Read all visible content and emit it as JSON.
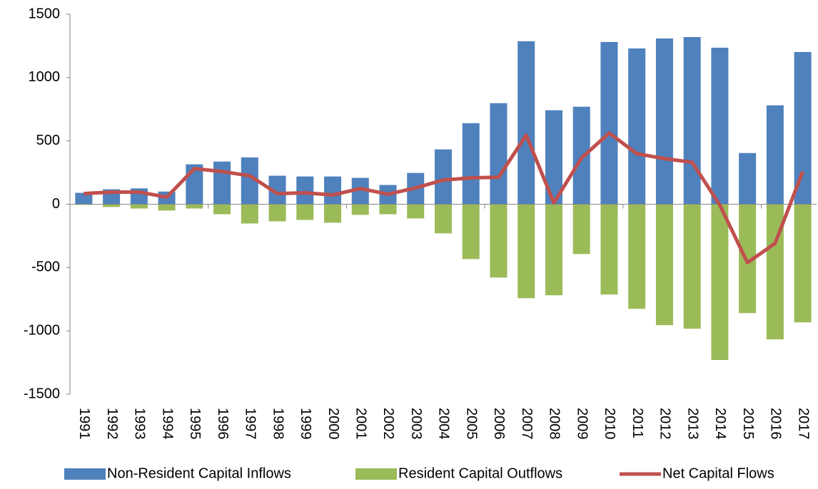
{
  "chart_data": {
    "type": "bar-line",
    "categories": [
      "1991",
      "1992",
      "1993",
      "1994",
      "1995",
      "1996",
      "1997",
      "1998",
      "1999",
      "2000",
      "2001",
      "2002",
      "2003",
      "2004",
      "2005",
      "2006",
      "2007",
      "2008",
      "2009",
      "2010",
      "2011",
      "2012",
      "2013",
      "2014",
      "2015",
      "2016",
      "2017"
    ],
    "series": [
      {
        "name": "Non-Resident Capital Inflows",
        "type": "bar",
        "color": "#4f81bd",
        "values": [
          90,
          118,
          125,
          100,
          315,
          337,
          370,
          225,
          219,
          219,
          208,
          152,
          247,
          433,
          640,
          798,
          1287,
          742,
          770,
          1281,
          1230,
          1309,
          1320,
          1236,
          404,
          781,
          1202
        ]
      },
      {
        "name": "Resident Capital Outflows",
        "type": "bar",
        "color": "#9bbb59",
        "values": [
          -5,
          -22,
          -34,
          -50,
          -34,
          -79,
          -152,
          -135,
          -124,
          -146,
          -84,
          -79,
          -112,
          -230,
          -433,
          -579,
          -742,
          -719,
          -393,
          -713,
          -826,
          -955,
          -983,
          -1230,
          -860,
          -1067,
          -933
        ]
      },
      {
        "name": "Net Capital Flows",
        "type": "line",
        "color": "#c0504d",
        "values": [
          84,
          96,
          96,
          56,
          281,
          258,
          225,
          84,
          90,
          73,
          124,
          79,
          129,
          191,
          208,
          213,
          545,
          11,
          365,
          562,
          399,
          360,
          331,
          -6,
          -461,
          -309,
          258
        ]
      }
    ],
    "ylim": [
      -1500,
      1500
    ],
    "yticks": [
      -1500,
      -1000,
      -500,
      0,
      500,
      1000,
      1500
    ],
    "legend": "bottom"
  }
}
